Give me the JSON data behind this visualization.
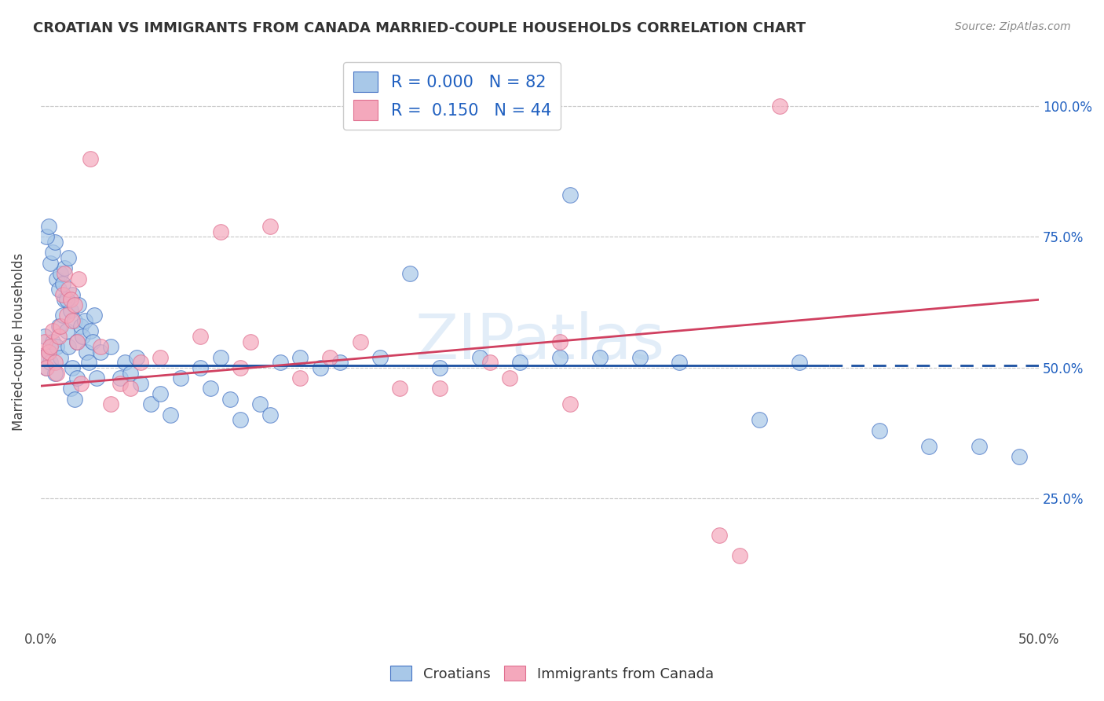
{
  "title": "CROATIAN VS IMMIGRANTS FROM CANADA MARRIED-COUPLE HOUSEHOLDS CORRELATION CHART",
  "source": "Source: ZipAtlas.com",
  "ylabel": "Married-couple Households",
  "blue_color": "#a8c8e8",
  "pink_color": "#f4a8bc",
  "blue_edge_color": "#4472c4",
  "pink_edge_color": "#e07090",
  "blue_line_color": "#1a4fa0",
  "pink_line_color": "#d04060",
  "blue_r": 0.0,
  "blue_n": 82,
  "pink_r": 0.15,
  "pink_n": 44,
  "xlim": [
    0.0,
    0.5
  ],
  "ylim": [
    0.0,
    1.1
  ],
  "ytick_positions": [
    0.25,
    0.5,
    0.75,
    1.0
  ],
  "ytick_labels": [
    "25.0%",
    "50.0%",
    "75.0%",
    "100.0%"
  ],
  "watermark": "ZIPatlas",
  "blue_scatter_x": [
    0.001,
    0.002,
    0.003,
    0.004,
    0.005,
    0.006,
    0.007,
    0.008,
    0.009,
    0.01,
    0.011,
    0.012,
    0.013,
    0.014,
    0.015,
    0.016,
    0.017,
    0.018,
    0.019,
    0.02,
    0.021,
    0.022,
    0.023,
    0.024,
    0.025,
    0.026,
    0.027,
    0.028,
    0.008,
    0.009,
    0.01,
    0.011,
    0.012,
    0.013,
    0.014,
    0.005,
    0.006,
    0.007,
    0.003,
    0.004,
    0.015,
    0.016,
    0.017,
    0.018,
    0.03,
    0.035,
    0.04,
    0.042,
    0.045,
    0.048,
    0.05,
    0.055,
    0.06,
    0.065,
    0.07,
    0.08,
    0.085,
    0.09,
    0.095,
    0.1,
    0.11,
    0.115,
    0.12,
    0.13,
    0.14,
    0.15,
    0.17,
    0.185,
    0.2,
    0.22,
    0.24,
    0.26,
    0.265,
    0.28,
    0.3,
    0.32,
    0.36,
    0.38,
    0.42,
    0.445,
    0.47,
    0.49
  ],
  "blue_scatter_y": [
    0.52,
    0.56,
    0.5,
    0.53,
    0.51,
    0.55,
    0.49,
    0.54,
    0.58,
    0.52,
    0.6,
    0.63,
    0.57,
    0.54,
    0.61,
    0.64,
    0.59,
    0.55,
    0.62,
    0.58,
    0.56,
    0.59,
    0.53,
    0.51,
    0.57,
    0.55,
    0.6,
    0.48,
    0.67,
    0.65,
    0.68,
    0.66,
    0.69,
    0.63,
    0.71,
    0.7,
    0.72,
    0.74,
    0.75,
    0.77,
    0.46,
    0.5,
    0.44,
    0.48,
    0.53,
    0.54,
    0.48,
    0.51,
    0.49,
    0.52,
    0.47,
    0.43,
    0.45,
    0.41,
    0.48,
    0.5,
    0.46,
    0.52,
    0.44,
    0.4,
    0.43,
    0.41,
    0.51,
    0.52,
    0.5,
    0.51,
    0.52,
    0.68,
    0.5,
    0.52,
    0.51,
    0.52,
    0.83,
    0.52,
    0.52,
    0.51,
    0.4,
    0.51,
    0.38,
    0.35,
    0.35,
    0.33
  ],
  "pink_scatter_x": [
    0.001,
    0.002,
    0.003,
    0.004,
    0.005,
    0.006,
    0.007,
    0.008,
    0.009,
    0.01,
    0.011,
    0.012,
    0.013,
    0.014,
    0.015,
    0.016,
    0.017,
    0.018,
    0.019,
    0.02,
    0.025,
    0.03,
    0.035,
    0.04,
    0.045,
    0.05,
    0.06,
    0.08,
    0.09,
    0.1,
    0.105,
    0.115,
    0.13,
    0.145,
    0.16,
    0.18,
    0.2,
    0.225,
    0.235,
    0.26,
    0.265,
    0.34,
    0.35,
    0.37
  ],
  "pink_scatter_y": [
    0.52,
    0.55,
    0.5,
    0.53,
    0.54,
    0.57,
    0.51,
    0.49,
    0.56,
    0.58,
    0.64,
    0.68,
    0.6,
    0.65,
    0.63,
    0.59,
    0.62,
    0.55,
    0.67,
    0.47,
    0.9,
    0.54,
    0.43,
    0.47,
    0.46,
    0.51,
    0.52,
    0.56,
    0.76,
    0.5,
    0.55,
    0.77,
    0.48,
    0.52,
    0.55,
    0.46,
    0.46,
    0.51,
    0.48,
    0.55,
    0.43,
    0.18,
    0.14,
    1.0
  ]
}
